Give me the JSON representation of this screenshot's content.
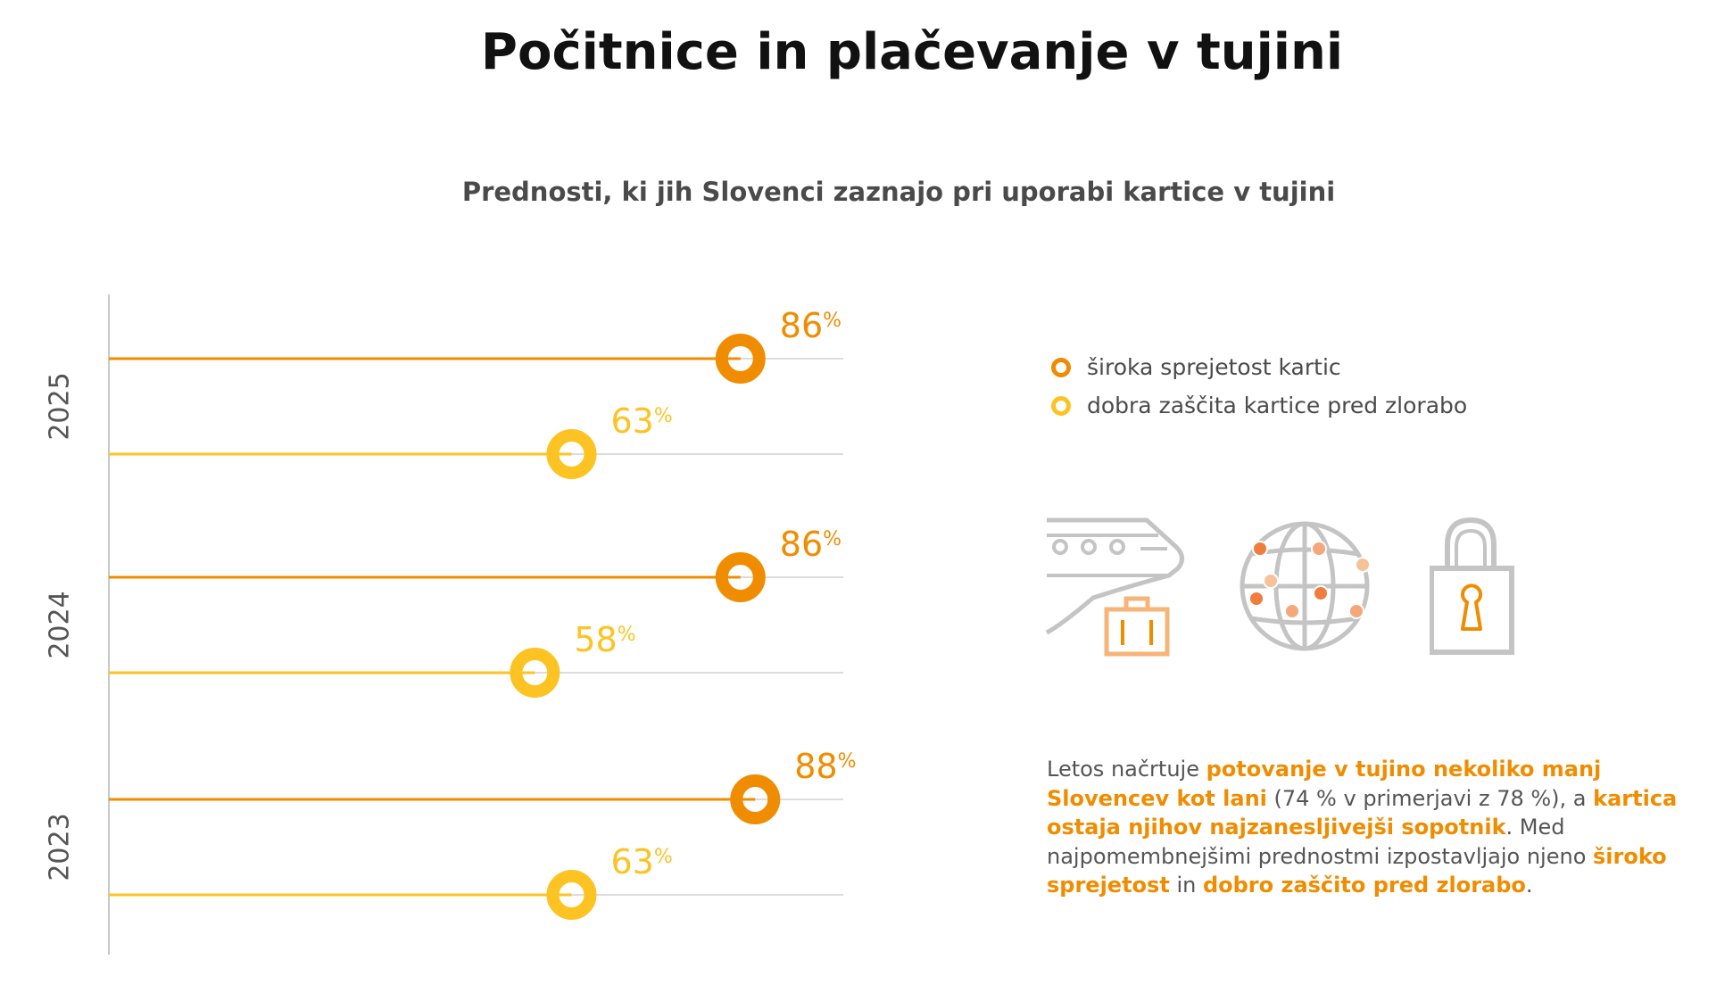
{
  "page": {
    "title": "Počitnice in plačevanje v tujini",
    "subtitle": "Prednosti, ki jih Slovenci zaznajo pri uporabi kartice v tujini"
  },
  "chart_data": {
    "type": "lollipop",
    "unit": "%",
    "groups": [
      {
        "label": "2025",
        "values": [
          86,
          63
        ]
      },
      {
        "label": "2024",
        "values": [
          86,
          58
        ]
      },
      {
        "label": "2023",
        "values": [
          88,
          63
        ]
      }
    ],
    "series": [
      {
        "name": "široka sprejetost kartic",
        "color": "#f08c00"
      },
      {
        "name": "dobra zaščita kartice pred zlorabo",
        "color": "#fdc323"
      }
    ],
    "label_colors": {
      "2025_0": "#f07d3c"
    },
    "xlim": [
      0,
      100
    ]
  },
  "icons": [
    "train-luggage-icon",
    "globe-network-icon",
    "padlock-icon"
  ],
  "text": {
    "parts": [
      {
        "t": "Letos načrtuje ",
        "hl": false
      },
      {
        "t": "potovanje v tujino nekoliko manj Slovencev kot lani",
        "hl": true
      },
      {
        "t": " (74 % v primerjavi z 78 %), a ",
        "hl": false
      },
      {
        "t": "kartica ostaja njihov najzanesljivejši sopotnik",
        "hl": true
      },
      {
        "t": ". Med najpomembnejšimi prednostmi izpostavljajo njeno ",
        "hl": false
      },
      {
        "t": "široko sprejetost",
        "hl": true
      },
      {
        "t": " in ",
        "hl": false
      },
      {
        "t": "dobro zaščito pred zlorabo",
        "hl": true
      },
      {
        "t": ".",
        "hl": false
      }
    ]
  }
}
